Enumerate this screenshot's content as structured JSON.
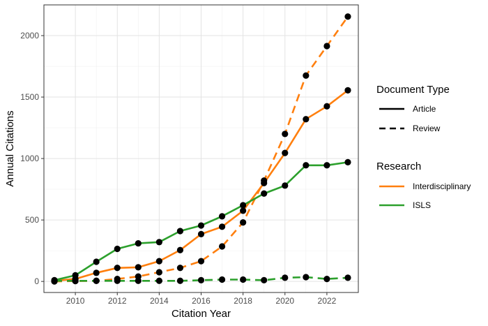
{
  "chart_data": {
    "type": "line",
    "xlabel": "Citation Year",
    "ylabel": "Annual Citations",
    "xlim": [
      2008.5,
      2023.5
    ],
    "ylim": [
      -90,
      2250
    ],
    "x_ticks": [
      2010,
      2012,
      2014,
      2016,
      2018,
      2020,
      2022
    ],
    "x_tick_labels": [
      "2010",
      "2012",
      "2014",
      "2016",
      "2018",
      "2020",
      "2022"
    ],
    "y_ticks": [
      0,
      500,
      1000,
      1500,
      2000
    ],
    "y_tick_labels": [
      "0",
      "500",
      "1000",
      "1500",
      "2000"
    ],
    "grid": true,
    "x": [
      2009,
      2010,
      2011,
      2012,
      2013,
      2014,
      2015,
      2016,
      2017,
      2018,
      2019,
      2020,
      2021,
      2022,
      2023
    ],
    "series": [
      {
        "research": "Interdisciplinary",
        "document_type": "Article",
        "color": "#ff7f0e",
        "values": [
          5,
          20,
          70,
          110,
          115,
          165,
          255,
          385,
          445,
          575,
          800,
          1045,
          1320,
          1425,
          1555
        ]
      },
      {
        "research": "Interdisciplinary",
        "document_type": "Review",
        "color": "#ff7f0e",
        "values": [
          0,
          3,
          5,
          20,
          40,
          75,
          110,
          165,
          285,
          480,
          820,
          1200,
          1675,
          1915,
          2155
        ]
      },
      {
        "research": "ISLS",
        "document_type": "Article",
        "color": "#2ca02c",
        "values": [
          10,
          50,
          160,
          265,
          310,
          320,
          410,
          455,
          530,
          620,
          715,
          780,
          945,
          945,
          970
        ]
      },
      {
        "research": "ISLS",
        "document_type": "Review",
        "color": "#2ca02c",
        "values": [
          5,
          5,
          5,
          5,
          5,
          5,
          5,
          10,
          15,
          15,
          10,
          30,
          35,
          20,
          30
        ]
      }
    ],
    "legend": {
      "placement": "right",
      "linetype_title": "Document Type",
      "linetype_entries": [
        {
          "label": "Article",
          "style": "solid"
        },
        {
          "label": "Review",
          "style": "dashed"
        }
      ],
      "color_title": "Research",
      "color_entries": [
        {
          "label": "Interdisciplinary",
          "color": "#ff7f0e"
        },
        {
          "label": "ISLS",
          "color": "#2ca02c"
        }
      ]
    }
  }
}
